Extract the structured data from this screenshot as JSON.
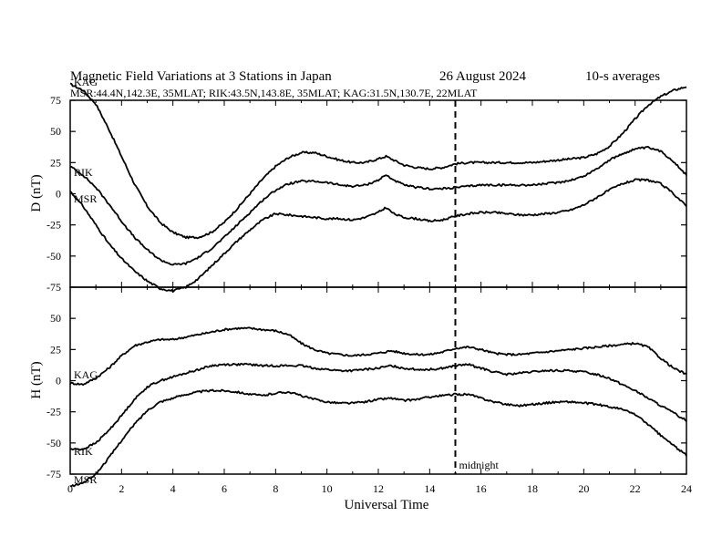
{
  "header": {
    "title": "Magnetic Field Variations at 3 Stations in Japan",
    "date": "26  August  2024",
    "averaging": "10-s averages",
    "stations_line": "MSR:44.4N,142.3E, 35MLAT;  RIK:43.5N,143.8E, 35MLAT;  KAG:31.5N,130.7E, 22MLAT"
  },
  "chart_data": [
    {
      "type": "line",
      "panel": "D",
      "ylabel": "D (nT)",
      "xlabel": "",
      "xlim": [
        0,
        24
      ],
      "ylim": [
        -75,
        75
      ],
      "y_ticks": [
        75,
        50,
        25,
        0,
        -25,
        -50,
        -75
      ],
      "series": [
        {
          "name": "KAG",
          "x": [
            0,
            0.5,
            1,
            1.5,
            2,
            2.5,
            3,
            3.5,
            4,
            4.5,
            5,
            5.5,
            6,
            6.5,
            7,
            7.5,
            8,
            8.5,
            9,
            9.5,
            10,
            10.5,
            11,
            11.5,
            12,
            12.3,
            12.6,
            13,
            13.5,
            14,
            14.5,
            15,
            15.5,
            16,
            16.5,
            17,
            17.5,
            18,
            18.5,
            19,
            19.5,
            20,
            20.5,
            21,
            21.5,
            22,
            22.5,
            23,
            23.5,
            24
          ],
          "y": [
            88,
            83,
            72,
            52,
            30,
            8,
            -10,
            -23,
            -31,
            -35,
            -35,
            -31,
            -23,
            -12,
            0,
            12,
            22,
            29,
            33,
            33,
            30,
            27,
            25,
            25,
            28,
            30,
            27,
            23,
            21,
            20,
            21,
            24,
            25,
            25,
            25,
            25,
            25,
            25,
            26,
            27,
            28,
            29,
            32,
            38,
            48,
            60,
            71,
            78,
            83,
            86
          ]
        },
        {
          "name": "RIK",
          "x": [
            0,
            0.5,
            1,
            1.5,
            2,
            2.5,
            3,
            3.5,
            4,
            4.5,
            5,
            5.5,
            6,
            6.5,
            7,
            7.5,
            8,
            8.5,
            9,
            9.5,
            10,
            10.5,
            11,
            11.5,
            12,
            12.3,
            12.6,
            13,
            13.5,
            14,
            14.5,
            15,
            15.5,
            16,
            16.5,
            17,
            17.5,
            18,
            18.5,
            19,
            19.5,
            20,
            20.5,
            21,
            21.5,
            22,
            22.5,
            23,
            23.5,
            24
          ],
          "y": [
            22,
            15,
            5,
            -8,
            -22,
            -35,
            -45,
            -53,
            -57,
            -56,
            -51,
            -44,
            -35,
            -25,
            -15,
            -5,
            3,
            8,
            10,
            10,
            9,
            7,
            6,
            7,
            11,
            15,
            11,
            7,
            5,
            4,
            4,
            5,
            6,
            7,
            7,
            7,
            7,
            7,
            8,
            9,
            11,
            14,
            20,
            27,
            32,
            36,
            37,
            34,
            26,
            15
          ]
        },
        {
          "name": "MSR",
          "x": [
            0,
            0.5,
            1,
            1.5,
            2,
            2.5,
            3,
            3.5,
            4,
            4.5,
            5,
            5.5,
            6,
            6.5,
            7,
            7.5,
            8,
            8.5,
            9,
            9.5,
            10,
            10.5,
            11,
            11.5,
            12,
            12.3,
            12.6,
            13,
            13.5,
            14,
            14.5,
            15,
            15.5,
            16,
            16.5,
            17,
            17.5,
            18,
            18.5,
            19,
            19.5,
            20,
            20.5,
            21,
            21.5,
            22,
            22.5,
            23,
            23.5,
            24
          ],
          "y": [
            2,
            -10,
            -25,
            -40,
            -52,
            -62,
            -70,
            -76,
            -78,
            -75,
            -68,
            -58,
            -48,
            -38,
            -29,
            -21,
            -16,
            -17,
            -18,
            -19,
            -20,
            -20,
            -21,
            -19,
            -15,
            -11,
            -16,
            -19,
            -20,
            -22,
            -21,
            -18,
            -16,
            -15,
            -15,
            -16,
            -17,
            -17,
            -16,
            -15,
            -13,
            -9,
            -3,
            3,
            8,
            11,
            11,
            8,
            0,
            -10
          ]
        }
      ]
    },
    {
      "type": "line",
      "panel": "H",
      "ylabel": "H (nT)",
      "xlabel": "Universal Time",
      "xlim": [
        0,
        24
      ],
      "ylim": [
        -75,
        75
      ],
      "y_ticks": [
        50,
        25,
        0,
        -25,
        -50,
        -75
      ],
      "x_ticks": [
        0,
        2,
        4,
        6,
        8,
        10,
        12,
        14,
        16,
        18,
        20,
        22,
        24
      ],
      "annotation": {
        "text": "midnight",
        "x": 15
      },
      "series": [
        {
          "name": "KAG",
          "x": [
            0,
            0.5,
            1,
            1.5,
            2,
            2.5,
            3,
            3.5,
            4,
            4.5,
            5,
            5.5,
            6,
            6.5,
            7,
            7.5,
            8,
            8.5,
            9,
            9.5,
            10,
            10.5,
            11,
            11.5,
            12,
            12.5,
            13,
            13.5,
            14,
            14.5,
            15,
            15.5,
            16,
            16.5,
            17,
            17.5,
            18,
            18.5,
            19,
            19.5,
            20,
            20.5,
            21,
            21.5,
            22,
            22.5,
            23,
            23.5,
            24
          ],
          "y": [
            -2,
            -3,
            2,
            10,
            20,
            28,
            31,
            33,
            33,
            35,
            37,
            39,
            41,
            42,
            42,
            41,
            40,
            37,
            30,
            25,
            22,
            21,
            20,
            21,
            22,
            24,
            22,
            21,
            21,
            23,
            26,
            27,
            25,
            22,
            21,
            21,
            22,
            23,
            24,
            25,
            26,
            27,
            28,
            29,
            30,
            27,
            18,
            10,
            5
          ]
        },
        {
          "name": "RIK",
          "x": [
            0,
            0.5,
            1,
            1.5,
            2,
            2.5,
            3,
            3.5,
            4,
            4.5,
            5,
            5.5,
            6,
            6.5,
            7,
            7.5,
            8,
            8.5,
            9,
            9.5,
            10,
            10.5,
            11,
            11.5,
            12,
            12.5,
            13,
            13.5,
            14,
            14.5,
            15,
            15.5,
            16,
            16.5,
            17,
            17.5,
            18,
            18.5,
            19,
            19.5,
            20,
            20.5,
            21,
            21.5,
            22,
            22.5,
            23,
            23.5,
            24
          ],
          "y": [
            -55,
            -55,
            -50,
            -40,
            -28,
            -15,
            -5,
            0,
            3,
            6,
            9,
            12,
            13,
            13,
            13,
            12,
            12,
            12,
            12,
            10,
            9,
            8,
            8,
            9,
            10,
            12,
            10,
            9,
            9,
            10,
            12,
            13,
            10,
            7,
            5,
            6,
            7,
            8,
            8,
            8,
            7,
            5,
            2,
            -3,
            -8,
            -14,
            -20,
            -26,
            -32
          ]
        },
        {
          "name": "MSR",
          "x": [
            0,
            0.5,
            1,
            1.5,
            2,
            2.5,
            3,
            3.5,
            4,
            4.5,
            5,
            5.5,
            6,
            6.5,
            7,
            7.5,
            8,
            8.5,
            9,
            9.5,
            10,
            10.5,
            11,
            11.5,
            12,
            12.5,
            13,
            13.5,
            14,
            14.5,
            15,
            15.5,
            16,
            16.5,
            17,
            17.5,
            18,
            18.5,
            19,
            19.5,
            20,
            20.5,
            21,
            21.5,
            22,
            22.5,
            23,
            23.5,
            24
          ],
          "y": [
            -85,
            -82,
            -75,
            -62,
            -48,
            -35,
            -24,
            -17,
            -14,
            -11,
            -9,
            -8,
            -8,
            -9,
            -11,
            -12,
            -10,
            -9,
            -12,
            -15,
            -17,
            -18,
            -18,
            -17,
            -15,
            -14,
            -16,
            -15,
            -13,
            -12,
            -11,
            -11,
            -14,
            -17,
            -19,
            -20,
            -19,
            -18,
            -17,
            -17,
            -18,
            -19,
            -21,
            -23,
            -27,
            -35,
            -44,
            -52,
            -60
          ]
        }
      ]
    }
  ]
}
